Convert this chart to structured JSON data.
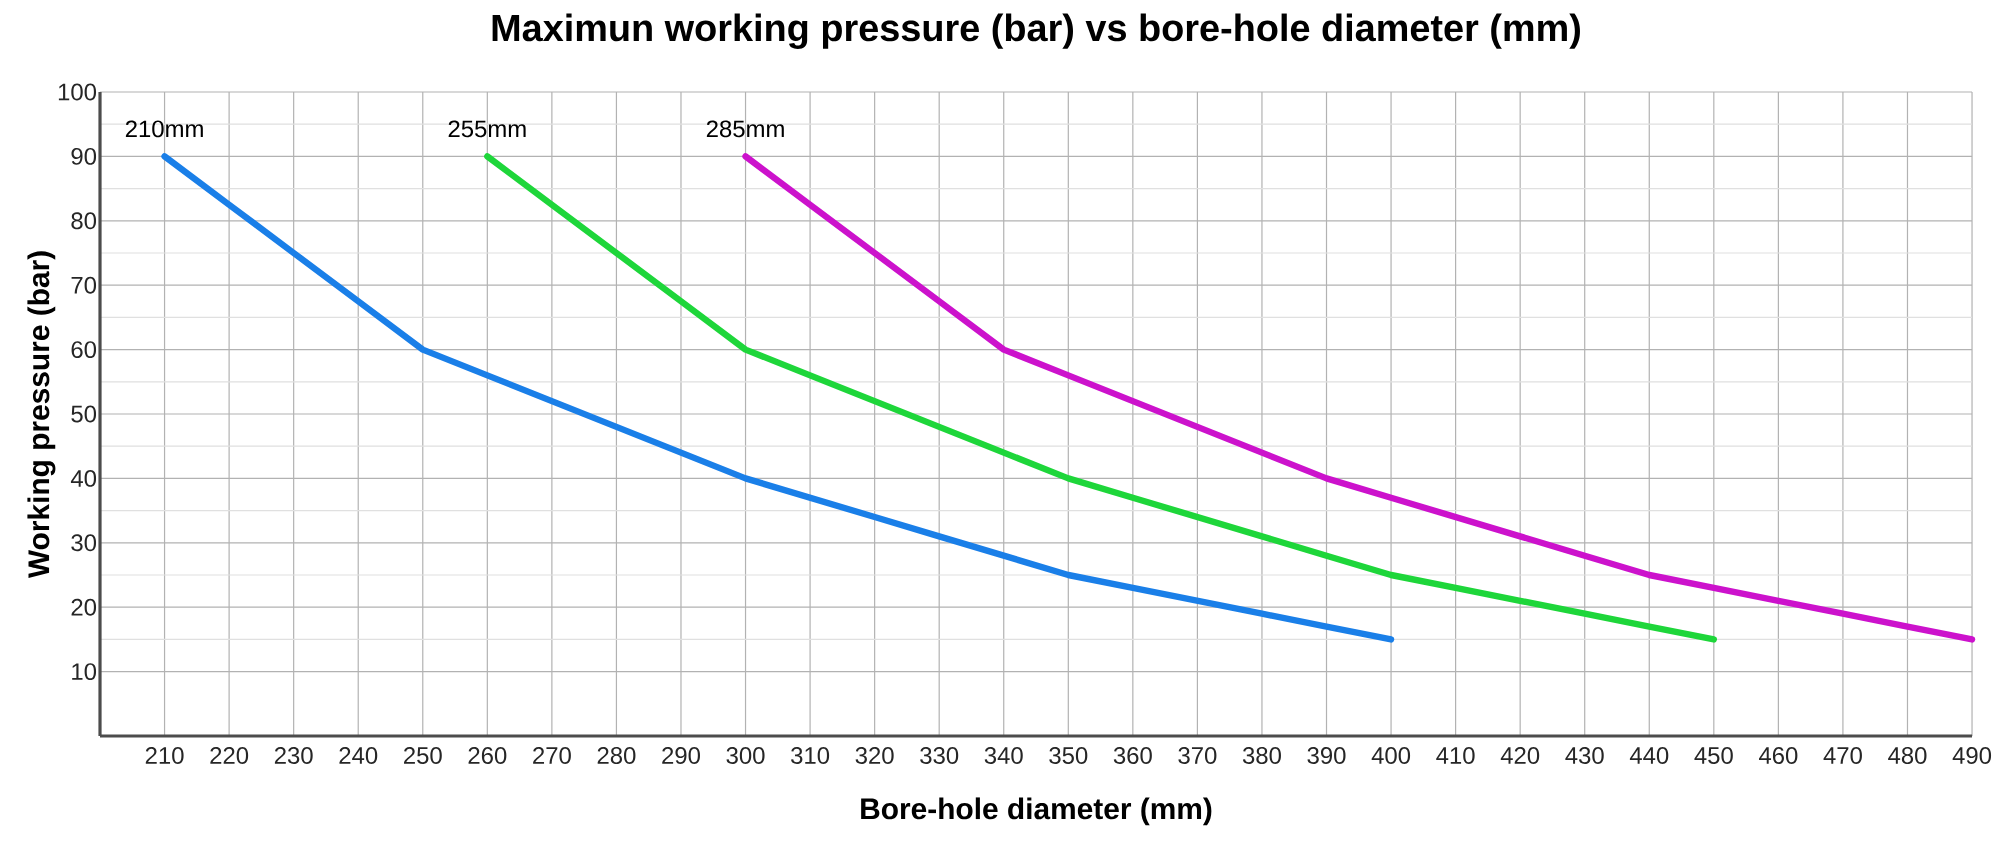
{
  "chart_data": {
    "type": "line",
    "title": "Maximun working pressure (bar) vs bore-hole diameter (mm)",
    "xlabel": "Bore-hole diameter (mm)",
    "ylabel": "Working pressure (bar)",
    "xlim": [
      200,
      490
    ],
    "ylim": [
      0,
      100
    ],
    "xticks": [
      210,
      220,
      230,
      240,
      250,
      260,
      270,
      280,
      290,
      300,
      310,
      320,
      330,
      340,
      350,
      360,
      370,
      380,
      390,
      400,
      410,
      420,
      430,
      440,
      450,
      460,
      470,
      480,
      490
    ],
    "yticks": [
      10,
      20,
      30,
      40,
      50,
      60,
      70,
      80,
      90,
      100
    ],
    "grid": true,
    "marker": "none",
    "line_style": "solid",
    "series": [
      {
        "name": "210mm",
        "color": "#1a7fe8",
        "x": [
          210,
          220,
          230,
          240,
          250,
          260,
          270,
          280,
          290,
          300,
          310,
          320,
          330,
          340,
          350,
          360,
          370,
          380,
          390,
          400
        ],
        "values": [
          90,
          82.5,
          75,
          67.5,
          60,
          56,
          52,
          48,
          44,
          40,
          37,
          34,
          31,
          28,
          25,
          23,
          21,
          19,
          17,
          15
        ]
      },
      {
        "name": "255mm",
        "color": "#1ed63a",
        "x": [
          260,
          270,
          280,
          290,
          300,
          310,
          320,
          330,
          340,
          350,
          360,
          370,
          380,
          390,
          400,
          410,
          420,
          430,
          440,
          450
        ],
        "values": [
          90,
          82.5,
          75,
          67.5,
          60,
          56,
          52,
          48,
          44,
          40,
          37,
          34,
          31,
          28,
          25,
          23,
          21,
          19,
          17,
          15
        ]
      },
      {
        "name": "285mm",
        "color": "#cc12cc",
        "x": [
          300,
          310,
          320,
          330,
          340,
          350,
          360,
          370,
          380,
          390,
          400,
          410,
          420,
          430,
          440,
          450,
          460,
          470,
          480,
          490
        ],
        "values": [
          90,
          82.5,
          75,
          67.5,
          60,
          56,
          52,
          48,
          44,
          40,
          37,
          34,
          31,
          28,
          25,
          23,
          21,
          19,
          17,
          15
        ]
      }
    ]
  }
}
